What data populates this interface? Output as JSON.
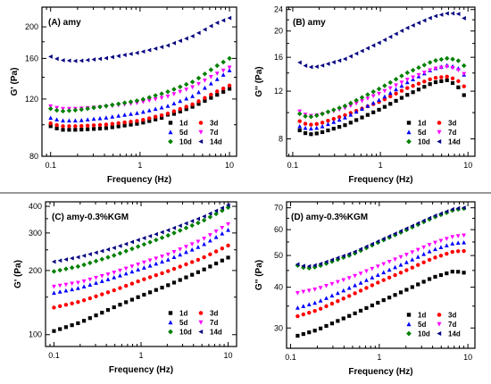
{
  "chart_data": [
    {
      "type": "scatter",
      "title": "(A) amy",
      "xlabel": "Frequency (Hz)",
      "ylabel": "G' (Pa)",
      "xscale": "log",
      "yscale": "log",
      "xlim": [
        0.08,
        12
      ],
      "ylim": [
        80,
        230
      ],
      "xticks": [
        0.1,
        1,
        10
      ],
      "xtick_labels": [
        "0.1",
        "1",
        "10"
      ],
      "yticks": [
        80,
        120,
        160,
        200
      ],
      "ytick_labels": [
        "80",
        "120",
        "160",
        "200"
      ],
      "grid": false,
      "legend": {
        "position": "bottom-right",
        "columns": 2
      },
      "series": [
        {
          "name": "1d",
          "color": "#000000",
          "marker": "square",
          "points": [
            [
              0.1,
              99
            ],
            [
              0.13,
              96.5
            ],
            [
              0.2,
              96.5
            ],
            [
              0.4,
              97.5
            ],
            [
              1,
              101
            ],
            [
              2,
              106
            ],
            [
              4,
              114
            ],
            [
              7,
              123
            ],
            [
              10,
              129
            ]
          ]
        },
        {
          "name": "3d",
          "color": "#ff0000",
          "marker": "circle",
          "points": [
            [
              0.1,
              101
            ],
            [
              0.13,
              99
            ],
            [
              0.2,
              99
            ],
            [
              0.4,
              100
            ],
            [
              1,
              103
            ],
            [
              2,
              108
            ],
            [
              4,
              116
            ],
            [
              7,
              126
            ],
            [
              10,
              132
            ]
          ]
        },
        {
          "name": "5d",
          "color": "#0000ff",
          "marker": "triangle-up",
          "points": [
            [
              0.1,
              105
            ],
            [
              0.13,
              103
            ],
            [
              0.2,
              103
            ],
            [
              0.4,
              105
            ],
            [
              1,
              109
            ],
            [
              2,
              114
            ],
            [
              4,
              123
            ],
            [
              7,
              137
            ],
            [
              10,
              147
            ]
          ]
        },
        {
          "name": "7d",
          "color": "#ff00ff",
          "marker": "triangle-down",
          "points": [
            [
              0.1,
              114
            ],
            [
              0.13,
              112
            ],
            [
              0.2,
              112
            ],
            [
              0.4,
              113.5
            ],
            [
              1,
              117
            ],
            [
              2,
              122
            ],
            [
              4,
              131
            ],
            [
              7,
              143
            ],
            [
              10,
              150
            ]
          ]
        },
        {
          "name": "10d",
          "color": "#008000",
          "marker": "diamond",
          "points": [
            [
              0.1,
              112
            ],
            [
              0.13,
              110
            ],
            [
              0.2,
              111
            ],
            [
              0.4,
              114
            ],
            [
              1,
              119
            ],
            [
              2,
              126
            ],
            [
              4,
              136
            ],
            [
              7,
              151
            ],
            [
              10,
              160
            ]
          ]
        },
        {
          "name": "14d",
          "color": "#000080",
          "marker": "triangle-left",
          "points": [
            [
              0.1,
              162
            ],
            [
              0.13,
              158
            ],
            [
              0.2,
              157
            ],
            [
              0.4,
              160
            ],
            [
              1,
              167
            ],
            [
              2,
              175
            ],
            [
              4,
              188
            ],
            [
              7,
              205
            ],
            [
              10,
              213
            ]
          ]
        }
      ]
    },
    {
      "type": "scatter",
      "title": "(B) amy",
      "xlabel": "Frequency (Hz)",
      "ylabel": "G'' (Pa)",
      "xscale": "log",
      "yscale": "log",
      "xlim": [
        0.085,
        12
      ],
      "ylim": [
        6.9,
        24.5
      ],
      "xticks": [
        0.1,
        1,
        10
      ],
      "xtick_labels": [
        "0.1",
        "1",
        "10"
      ],
      "yticks": [
        8,
        12,
        16,
        20,
        24
      ],
      "ytick_labels": [
        "8",
        "12",
        "16",
        "20",
        "24"
      ],
      "grid": false,
      "legend": {
        "position": "bottom-right",
        "columns": 2
      },
      "series": [
        {
          "name": "1d",
          "color": "#000000",
          "marker": "square",
          "points": [
            [
              0.12,
              8.6
            ],
            [
              0.15,
              8.3
            ],
            [
              0.2,
              8.4
            ],
            [
              0.4,
              9.0
            ],
            [
              1,
              10.3
            ],
            [
              2,
              11.6
            ],
            [
              4,
              12.9
            ],
            [
              6,
              13.2
            ],
            [
              8,
              12.3
            ],
            [
              9,
              11.6
            ]
          ]
        },
        {
          "name": "3d",
          "color": "#ff0000",
          "marker": "circle",
          "points": [
            [
              0.12,
              9.3
            ],
            [
              0.15,
              9.0
            ],
            [
              0.2,
              9.1
            ],
            [
              0.4,
              9.8
            ],
            [
              1,
              11.0
            ],
            [
              2,
              12.3
            ],
            [
              4,
              13.4
            ],
            [
              6,
              13.6
            ],
            [
              8,
              13.0
            ],
            [
              9,
              12.5
            ]
          ]
        },
        {
          "name": "5d",
          "color": "#0000ff",
          "marker": "triangle-up",
          "points": [
            [
              0.12,
              8.9
            ],
            [
              0.15,
              8.7
            ],
            [
              0.2,
              8.8
            ],
            [
              0.4,
              9.6
            ],
            [
              1,
              11.2
            ],
            [
              2,
              12.9
            ],
            [
              4,
              14.5
            ],
            [
              6,
              15.0
            ],
            [
              8,
              14.5
            ],
            [
              9,
              13.8
            ]
          ]
        },
        {
          "name": "7d",
          "color": "#ff00ff",
          "marker": "triangle-down",
          "points": [
            [
              0.12,
              10.1
            ],
            [
              0.15,
              9.7
            ],
            [
              0.2,
              9.8
            ],
            [
              0.4,
              10.4
            ],
            [
              1,
              11.8
            ],
            [
              2,
              13.2
            ],
            [
              4,
              14.5
            ],
            [
              6,
              14.8
            ],
            [
              8,
              14.3
            ],
            [
              9,
              13.9
            ]
          ]
        },
        {
          "name": "10d",
          "color": "#008000",
          "marker": "diamond",
          "points": [
            [
              0.12,
              9.9
            ],
            [
              0.15,
              9.6
            ],
            [
              0.2,
              9.8
            ],
            [
              0.4,
              10.6
            ],
            [
              1,
              12.3
            ],
            [
              2,
              14.0
            ],
            [
              4,
              15.5
            ],
            [
              6,
              15.9
            ],
            [
              8,
              15.5
            ],
            [
              9,
              14.9
            ]
          ]
        },
        {
          "name": "14d",
          "color": "#000080",
          "marker": "triangle-left",
          "points": [
            [
              0.12,
              15.3
            ],
            [
              0.15,
              14.7
            ],
            [
              0.2,
              14.8
            ],
            [
              0.4,
              15.8
            ],
            [
              1,
              18.2
            ],
            [
              2,
              20.5
            ],
            [
              4,
              22.6
            ],
            [
              6,
              23.3
            ],
            [
              8,
              23.1
            ],
            [
              9,
              22.3
            ]
          ]
        }
      ]
    },
    {
      "type": "scatter",
      "title": "(C) amy-0.3%KGM",
      "xlabel": "Frequency (Hz)",
      "ylabel": "G' (Pa)",
      "xscale": "log",
      "yscale": "log",
      "xlim": [
        0.08,
        12.5
      ],
      "ylim": [
        88,
        420
      ],
      "xticks": [
        0.1,
        1,
        10
      ],
      "xtick_labels": [
        "0.1",
        "1",
        "10"
      ],
      "yticks": [
        100,
        200,
        300,
        400
      ],
      "ytick_labels": [
        "100",
        "200",
        "300",
        "400"
      ],
      "grid": false,
      "legend": {
        "position": "bottom-right",
        "columns": 2
      },
      "series": [
        {
          "name": "1d",
          "color": "#000000",
          "marker": "square",
          "points": [
            [
              0.1,
              104
            ],
            [
              0.2,
              114
            ],
            [
              0.5,
              135
            ],
            [
              1,
              152
            ],
            [
              2,
              170
            ],
            [
              5,
              200
            ],
            [
              10,
              230
            ]
          ]
        },
        {
          "name": "3d",
          "color": "#ff0000",
          "marker": "circle",
          "points": [
            [
              0.1,
              134
            ],
            [
              0.2,
              143
            ],
            [
              0.5,
              162
            ],
            [
              1,
              180
            ],
            [
              2,
              198
            ],
            [
              5,
              228
            ],
            [
              10,
              262
            ]
          ]
        },
        {
          "name": "5d",
          "color": "#0000ff",
          "marker": "triangle-up",
          "points": [
            [
              0.1,
              157
            ],
            [
              0.2,
              166
            ],
            [
              0.5,
              186
            ],
            [
              1,
              204
            ],
            [
              2,
              224
            ],
            [
              5,
              262
            ],
            [
              10,
              310
            ]
          ]
        },
        {
          "name": "7d",
          "color": "#ff00ff",
          "marker": "triangle-down",
          "points": [
            [
              0.1,
              168
            ],
            [
              0.2,
              176
            ],
            [
              0.5,
              196
            ],
            [
              1,
              216
            ],
            [
              2,
              237
            ],
            [
              5,
              278
            ],
            [
              10,
              330
            ]
          ]
        },
        {
          "name": "10d",
          "color": "#008000",
          "marker": "diamond",
          "points": [
            [
              0.1,
              198
            ],
            [
              0.2,
              210
            ],
            [
              0.5,
              236
            ],
            [
              1,
              262
            ],
            [
              2,
              291
            ],
            [
              5,
              340
            ],
            [
              10,
              395
            ]
          ]
        },
        {
          "name": "14d",
          "color": "#000080",
          "marker": "triangle-left",
          "points": [
            [
              0.1,
              220
            ],
            [
              0.2,
              232
            ],
            [
              0.5,
              256
            ],
            [
              1,
              281
            ],
            [
              2,
              308
            ],
            [
              5,
              355
            ],
            [
              10,
              405
            ]
          ]
        }
      ]
    },
    {
      "type": "scatter",
      "title": "(D) amy-0.3%KGM",
      "xlabel": "Frequency (Hz)",
      "ylabel": "G'' (Pa)",
      "xscale": "log",
      "yscale": "log",
      "xlim": [
        0.09,
        12
      ],
      "ylim": [
        26,
        73
      ],
      "xticks": [
        0.1,
        1,
        10
      ],
      "xtick_labels": [
        "0.1",
        "1",
        "10"
      ],
      "yticks": [
        30,
        40,
        50,
        60,
        70
      ],
      "ytick_labels": [
        "30",
        "40",
        "50",
        "60",
        "70"
      ],
      "grid": false,
      "legend": {
        "position": "bottom-right",
        "columns": 2
      },
      "series": [
        {
          "name": "1d",
          "color": "#000000",
          "marker": "square",
          "points": [
            [
              0.12,
              28.4
            ],
            [
              0.2,
              29.6
            ],
            [
              0.5,
              33.0
            ],
            [
              1,
              36.0
            ],
            [
              2,
              39.2
            ],
            [
              4,
              42.8
            ],
            [
              7,
              44.8
            ],
            [
              9,
              44.3
            ]
          ]
        },
        {
          "name": "3d",
          "color": "#ff0000",
          "marker": "circle",
          "points": [
            [
              0.12,
              32.6
            ],
            [
              0.2,
              34.0
            ],
            [
              0.5,
              38.0
            ],
            [
              1,
              41.5
            ],
            [
              2,
              45.0
            ],
            [
              4,
              49.0
            ],
            [
              7,
              51.5
            ],
            [
              9,
              51.6
            ]
          ]
        },
        {
          "name": "5d",
          "color": "#0000ff",
          "marker": "triangle-up",
          "points": [
            [
              0.12,
              34.6
            ],
            [
              0.2,
              36.0
            ],
            [
              0.5,
              40.2
            ],
            [
              1,
              43.8
            ],
            [
              2,
              47.6
            ],
            [
              4,
              52.0
            ],
            [
              7,
              54.6
            ],
            [
              9,
              54.8
            ]
          ]
        },
        {
          "name": "7d",
          "color": "#ff00ff",
          "marker": "triangle-down",
          "points": [
            [
              0.12,
              38.4
            ],
            [
              0.2,
              39.5
            ],
            [
              0.5,
              43.0
            ],
            [
              1,
              46.5
            ],
            [
              2,
              50.2
            ],
            [
              4,
              54.4
            ],
            [
              7,
              57.2
            ],
            [
              9,
              57.6
            ]
          ]
        },
        {
          "name": "10d",
          "color": "#008000",
          "marker": "diamond",
          "points": [
            [
              0.12,
              46.6
            ],
            [
              0.15,
              45.6
            ],
            [
              0.2,
              46.2
            ],
            [
              0.5,
              50.4
            ],
            [
              1,
              55.0
            ],
            [
              2,
              59.8
            ],
            [
              4,
              65.2
            ],
            [
              7,
              69.0
            ],
            [
              9,
              69.6
            ]
          ]
        },
        {
          "name": "14d",
          "color": "#000080",
          "marker": "triangle-left",
          "points": [
            [
              0.12,
              47.0
            ],
            [
              0.15,
              46.2
            ],
            [
              0.2,
              46.8
            ],
            [
              0.5,
              51.0
            ],
            [
              1,
              55.5
            ],
            [
              2,
              60.4
            ],
            [
              4,
              65.8
            ],
            [
              7,
              69.6
            ],
            [
              9,
              70.0
            ]
          ]
        }
      ]
    }
  ]
}
